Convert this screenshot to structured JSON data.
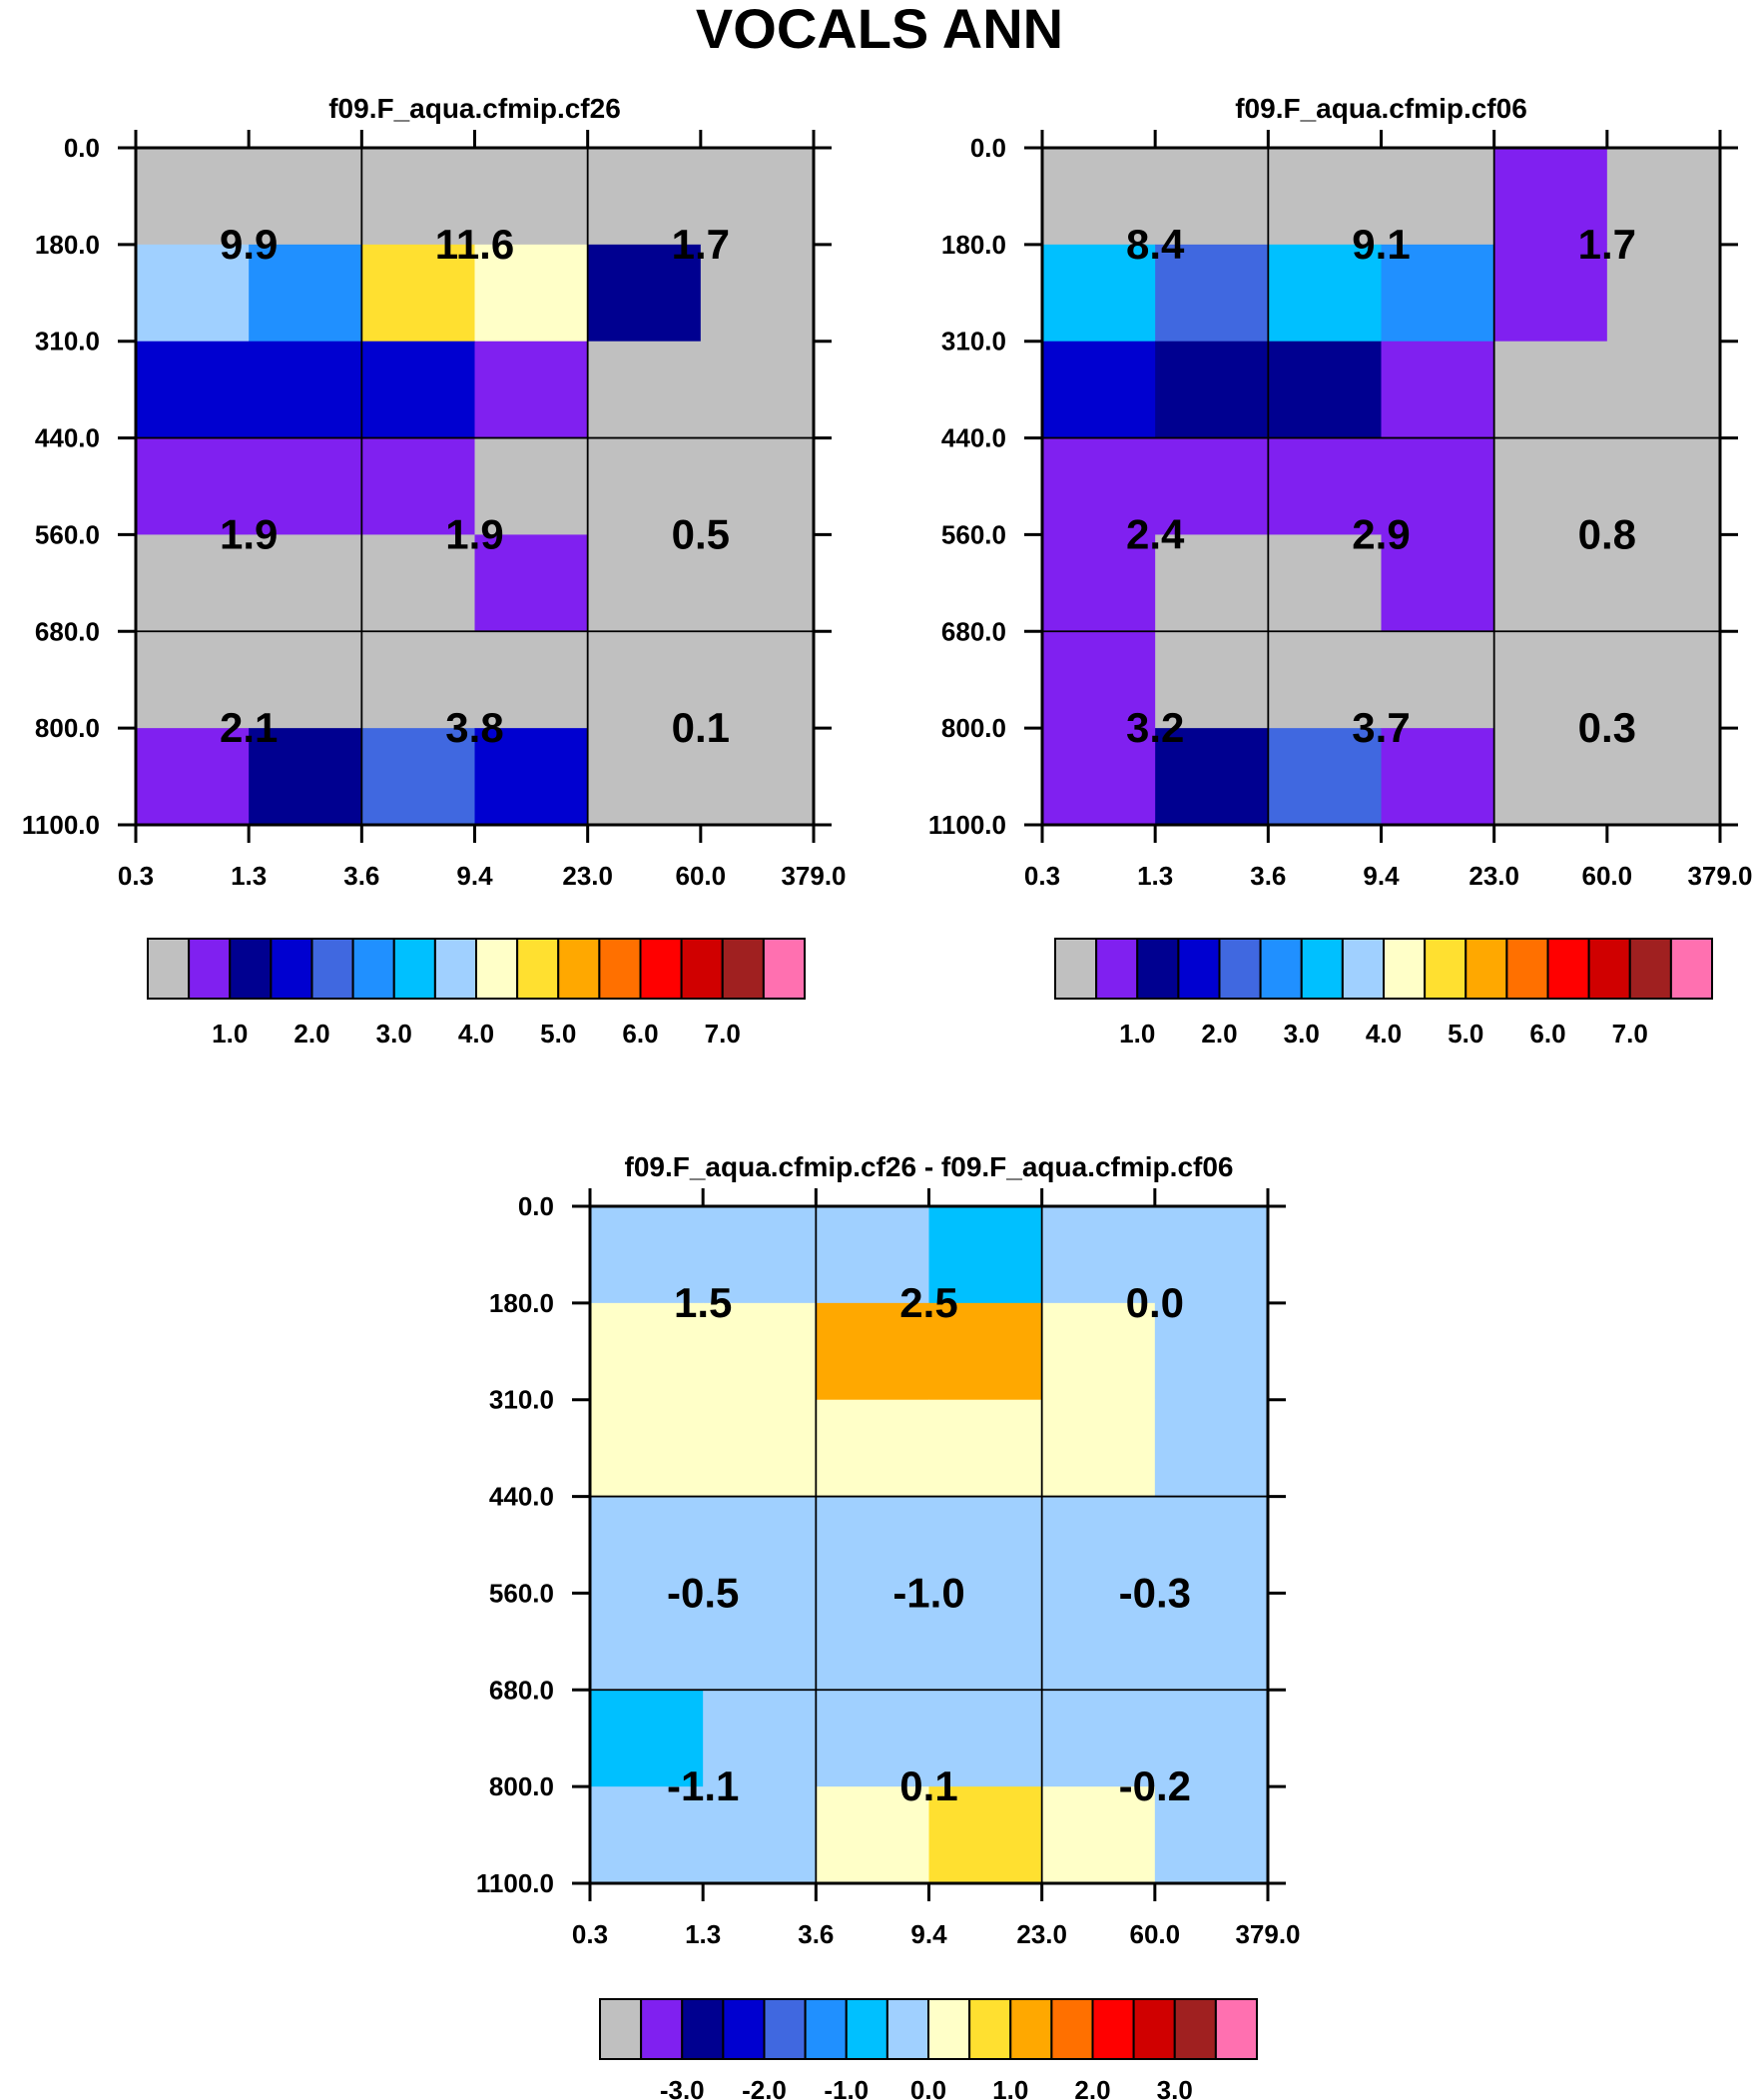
{
  "figure": {
    "title": "VOCALS ANN"
  },
  "palettes": {
    "main": [
      "#c0c0c0",
      "#8020f0",
      "#000090",
      "#0000d0",
      "#4068e0",
      "#2090ff",
      "#00c0ff",
      "#a0d0ff",
      "#ffffc8",
      "#ffe030",
      "#ffa800",
      "#ff7000",
      "#ff0000",
      "#d00000",
      "#a02020",
      "#ff70b0"
    ]
  },
  "chart_data": [
    {
      "type": "heatmap",
      "title": "f09.F_aqua.cfmip.cf26",
      "x_ticks": [
        "0.3",
        "1.3",
        "3.6",
        "9.4",
        "23.0",
        "60.0",
        "379.0"
      ],
      "y_ticks": [
        "0.0",
        "180.0",
        "310.0",
        "440.0",
        "560.0",
        "680.0",
        "800.0",
        "1100.0"
      ],
      "cell_color_index_rows_top_to_bottom": [
        [
          0,
          0,
          0,
          0,
          0,
          0
        ],
        [
          7,
          5,
          9,
          8,
          2,
          0
        ],
        [
          3,
          3,
          3,
          1,
          0,
          0
        ],
        [
          1,
          1,
          1,
          0,
          0,
          0
        ],
        [
          0,
          0,
          0,
          1,
          0,
          0
        ],
        [
          0,
          0,
          0,
          0,
          0,
          0
        ],
        [
          1,
          2,
          4,
          3,
          0,
          0
        ]
      ],
      "annotations": [
        {
          "text": "9.9",
          "col": 1,
          "row": 1
        },
        {
          "text": "11.6",
          "col": 3,
          "row": 1
        },
        {
          "text": "1.7",
          "col": 5,
          "row": 1
        },
        {
          "text": "1.9",
          "col": 1,
          "row": 4
        },
        {
          "text": "1.9",
          "col": 3,
          "row": 4
        },
        {
          "text": "0.5",
          "col": 5,
          "row": 4
        },
        {
          "text": "2.1",
          "col": 1,
          "row": 6
        },
        {
          "text": "3.8",
          "col": 3,
          "row": 6
        },
        {
          "text": "0.1",
          "col": 5,
          "row": 6
        }
      ],
      "colorbar": {
        "palette": "main",
        "labels": [
          "1.0",
          "2.0",
          "3.0",
          "4.0",
          "5.0",
          "6.0",
          "7.0"
        ]
      }
    },
    {
      "type": "heatmap",
      "title": "f09.F_aqua.cfmip.cf06",
      "x_ticks": [
        "0.3",
        "1.3",
        "3.6",
        "9.4",
        "23.0",
        "60.0",
        "379.0"
      ],
      "y_ticks": [
        "0.0",
        "180.0",
        "310.0",
        "440.0",
        "560.0",
        "680.0",
        "800.0",
        "1100.0"
      ],
      "cell_color_index_rows_top_to_bottom": [
        [
          0,
          0,
          0,
          0,
          1,
          0
        ],
        [
          6,
          4,
          6,
          5,
          1,
          0
        ],
        [
          3,
          2,
          2,
          1,
          0,
          0
        ],
        [
          1,
          1,
          1,
          1,
          0,
          0
        ],
        [
          1,
          0,
          0,
          1,
          0,
          0
        ],
        [
          1,
          0,
          0,
          0,
          0,
          0
        ],
        [
          1,
          2,
          4,
          1,
          0,
          0
        ]
      ],
      "annotations": [
        {
          "text": "8.4",
          "col": 1,
          "row": 1
        },
        {
          "text": "9.1",
          "col": 3,
          "row": 1
        },
        {
          "text": "1.7",
          "col": 5,
          "row": 1
        },
        {
          "text": "2.4",
          "col": 1,
          "row": 4
        },
        {
          "text": "2.9",
          "col": 3,
          "row": 4
        },
        {
          "text": "0.8",
          "col": 5,
          "row": 4
        },
        {
          "text": "3.2",
          "col": 1,
          "row": 6
        },
        {
          "text": "3.7",
          "col": 3,
          "row": 6
        },
        {
          "text": "0.3",
          "col": 5,
          "row": 6
        }
      ],
      "colorbar": {
        "palette": "main",
        "labels": [
          "1.0",
          "2.0",
          "3.0",
          "4.0",
          "5.0",
          "6.0",
          "7.0"
        ]
      }
    },
    {
      "type": "heatmap",
      "title": "f09.F_aqua.cfmip.cf26 - f09.F_aqua.cfmip.cf06",
      "x_ticks": [
        "0.3",
        "1.3",
        "3.6",
        "9.4",
        "23.0",
        "60.0",
        "379.0"
      ],
      "y_ticks": [
        "0.0",
        "180.0",
        "310.0",
        "440.0",
        "560.0",
        "680.0",
        "800.0",
        "1100.0"
      ],
      "cell_color_index_rows_top_to_bottom": [
        [
          7,
          7,
          7,
          6,
          7,
          7
        ],
        [
          8,
          8,
          10,
          10,
          8,
          7
        ],
        [
          8,
          8,
          8,
          8,
          8,
          7
        ],
        [
          7,
          7,
          7,
          7,
          7,
          7
        ],
        [
          7,
          7,
          7,
          7,
          7,
          7
        ],
        [
          6,
          7,
          7,
          7,
          7,
          7
        ],
        [
          7,
          7,
          8,
          9,
          8,
          7
        ]
      ],
      "annotations": [
        {
          "text": "1.5",
          "col": 1,
          "row": 1
        },
        {
          "text": "2.5",
          "col": 3,
          "row": 1
        },
        {
          "text": "0.0",
          "col": 5,
          "row": 1
        },
        {
          "text": "-0.5",
          "col": 1,
          "row": 4
        },
        {
          "text": "-1.0",
          "col": 3,
          "row": 4
        },
        {
          "text": "-0.3",
          "col": 5,
          "row": 4
        },
        {
          "text": "-1.1",
          "col": 1,
          "row": 6
        },
        {
          "text": "0.1",
          "col": 3,
          "row": 6
        },
        {
          "text": "-0.2",
          "col": 5,
          "row": 6
        }
      ],
      "colorbar": {
        "palette": "main",
        "labels": [
          "-3.0",
          "-2.0",
          "-1.0",
          "0.0",
          "1.0",
          "2.0",
          "3.0"
        ]
      }
    }
  ]
}
